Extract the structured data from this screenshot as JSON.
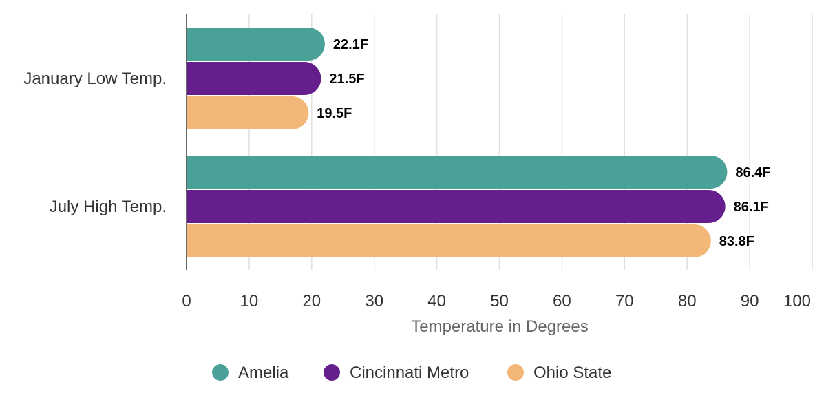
{
  "chart_data": {
    "type": "bar",
    "orientation": "horizontal",
    "categories": [
      "January Low Temp.",
      "July High Temp."
    ],
    "series": [
      {
        "name": "Amelia",
        "color": "#4aa198",
        "values": [
          22.1,
          86.4
        ],
        "labels": [
          "22.1F",
          "86.4F"
        ]
      },
      {
        "name": "Cincinnati Metro",
        "color": "#651f8c",
        "values": [
          21.5,
          86.1
        ],
        "labels": [
          "21.5F",
          "86.1F"
        ]
      },
      {
        "name": "Ohio State",
        "color": "#f3b877",
        "values": [
          19.5,
          83.8
        ],
        "labels": [
          "19.5F",
          "83.8F"
        ]
      }
    ],
    "xlabel": "Temperature in Degrees",
    "ylabel": "",
    "xlim": [
      0,
      100
    ],
    "ticks": [
      "0",
      "10",
      "20",
      "30",
      "40",
      "50",
      "60",
      "70",
      "80",
      "90",
      "100"
    ],
    "grid": true,
    "legend_position": "bottom"
  }
}
